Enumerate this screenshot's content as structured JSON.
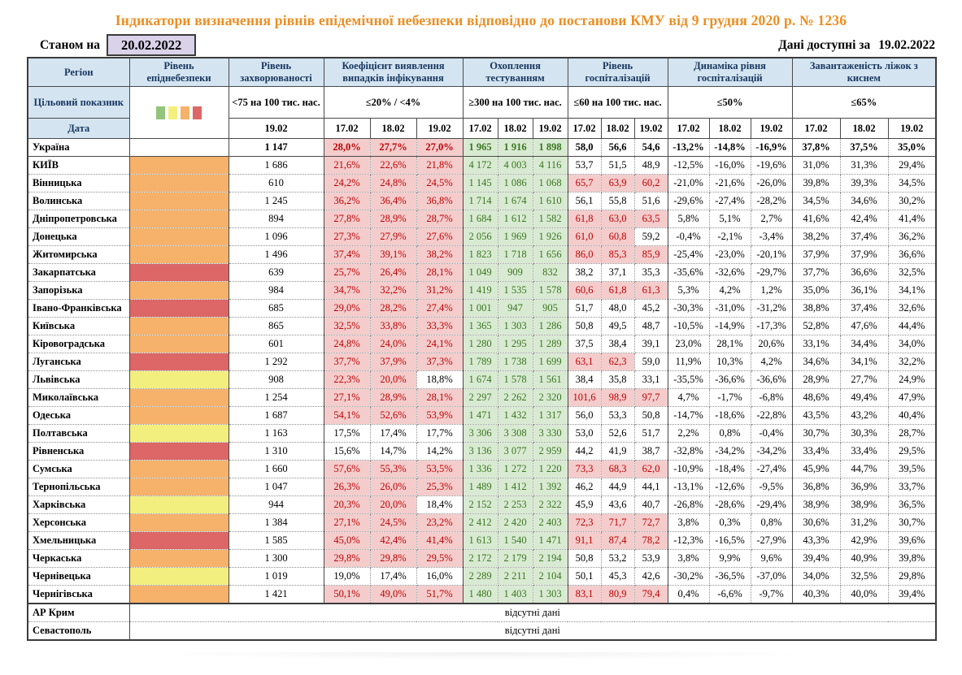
{
  "title": "Індикатори визначення рівнів епідемічної небезпеки відповідно до постанови КМУ від 9 грудня 2020 р. № 1236",
  "meta": {
    "as_of_label": "Станом на",
    "as_of_date": "20.02.2022",
    "available_label": "Дані доступні за",
    "available_date": "19.02.2022"
  },
  "table": {
    "header": {
      "region_label": "Регіон",
      "target_label": "Цільовий показник",
      "date_label": "Дата",
      "legend_colors": [
        "#93C47D",
        "#F3F07E",
        "#F6B26B",
        "#DD6666"
      ],
      "groups": [
        {
          "name": "Рівень епіднебезпеки",
          "target": "",
          "dates": []
        },
        {
          "name": "Рівень захворюваності",
          "target": "<75 на 100 тис. нас.",
          "dates": [
            "19.02"
          ]
        },
        {
          "name": "Коефіцієнт виявлення випадків інфікування",
          "target": "≤20% / <4%",
          "dates": [
            "17.02",
            "18.02",
            "19.02"
          ]
        },
        {
          "name": "Охоплення тестуванням",
          "target": "≥300 на 100 тис. нас.",
          "dates": [
            "17.02",
            "18.02",
            "19.02"
          ]
        },
        {
          "name": "Рівень госпіталізацій",
          "target": "≤60 на 100 тис. нас.",
          "dates": [
            "17.02",
            "18.02",
            "19.02"
          ]
        },
        {
          "name": "Динаміка рівня госпіталізацій",
          "target": "≤50%",
          "dates": [
            "17.02",
            "18.02",
            "19.02"
          ]
        },
        {
          "name": "Завантаженість ліжок з киснем",
          "target": "≤65%",
          "dates": [
            "17.02",
            "18.02",
            "19.02"
          ]
        }
      ]
    },
    "level_colors": {
      "orange": "#F6B26B",
      "red": "#DD6666",
      "yellow": "#F3EF7E"
    },
    "rows": [
      {
        "region": "Україна",
        "bold": true,
        "level": "",
        "inc": "1 147",
        "det": [
          "28,0%",
          "27,7%",
          "27,0%"
        ],
        "detA": [
          1,
          1,
          1
        ],
        "test": [
          "1 965",
          "1 916",
          "1 898"
        ],
        "hosp": [
          "58,0",
          "56,6",
          "54,6"
        ],
        "hospA": [
          0,
          0,
          0
        ],
        "dyn": [
          "-13,2%",
          "-14,8%",
          "-16,9%"
        ],
        "beds": [
          "37,8%",
          "37,5%",
          "35,0%"
        ]
      },
      {
        "region": "КИЇВ",
        "level": "orange",
        "inc": "1 686",
        "det": [
          "21,6%",
          "22,6%",
          "21,8%"
        ],
        "detA": [
          1,
          1,
          1
        ],
        "test": [
          "4 172",
          "4 003",
          "4 116"
        ],
        "hosp": [
          "53,7",
          "51,5",
          "48,9"
        ],
        "hospA": [
          0,
          0,
          0
        ],
        "dyn": [
          "-12,5%",
          "-16,0%",
          "-19,6%"
        ],
        "beds": [
          "31,0%",
          "31,3%",
          "29,4%"
        ]
      },
      {
        "region": "Вінницька",
        "level": "orange",
        "inc": "610",
        "det": [
          "24,2%",
          "24,8%",
          "24,5%"
        ],
        "detA": [
          1,
          1,
          1
        ],
        "test": [
          "1 145",
          "1 086",
          "1 068"
        ],
        "hosp": [
          "65,7",
          "63,9",
          "60,2"
        ],
        "hospA": [
          1,
          1,
          1
        ],
        "dyn": [
          "-21,0%",
          "-21,6%",
          "-26,0%"
        ],
        "beds": [
          "39,8%",
          "39,3%",
          "34,5%"
        ]
      },
      {
        "region": "Волинська",
        "level": "orange",
        "inc": "1 245",
        "det": [
          "36,2%",
          "36,4%",
          "36,8%"
        ],
        "detA": [
          1,
          1,
          1
        ],
        "test": [
          "1 714",
          "1 674",
          "1 610"
        ],
        "hosp": [
          "56,1",
          "55,8",
          "51,6"
        ],
        "hospA": [
          0,
          0,
          0
        ],
        "dyn": [
          "-29,6%",
          "-27,4%",
          "-28,2%"
        ],
        "beds": [
          "34,5%",
          "34,6%",
          "30,2%"
        ]
      },
      {
        "region": "Дніпропетровська",
        "level": "orange",
        "inc": "894",
        "det": [
          "27,8%",
          "28,9%",
          "28,7%"
        ],
        "detA": [
          1,
          1,
          1
        ],
        "test": [
          "1 684",
          "1 612",
          "1 582"
        ],
        "hosp": [
          "61,8",
          "63,0",
          "63,5"
        ],
        "hospA": [
          1,
          1,
          1
        ],
        "dyn": [
          "5,8%",
          "5,1%",
          "2,7%"
        ],
        "beds": [
          "41,6%",
          "42,4%",
          "41,4%"
        ]
      },
      {
        "region": "Донецька",
        "level": "orange",
        "inc": "1 096",
        "det": [
          "27,3%",
          "27,9%",
          "27,6%"
        ],
        "detA": [
          1,
          1,
          1
        ],
        "test": [
          "2 056",
          "1 969",
          "1 926"
        ],
        "hosp": [
          "61,0",
          "60,8",
          "59,2"
        ],
        "hospA": [
          1,
          1,
          0
        ],
        "dyn": [
          "-0,4%",
          "-2,1%",
          "-3,4%"
        ],
        "beds": [
          "38,2%",
          "37,4%",
          "36,2%"
        ]
      },
      {
        "region": "Житомирська",
        "level": "orange",
        "inc": "1 496",
        "det": [
          "37,4%",
          "39,1%",
          "38,2%"
        ],
        "detA": [
          1,
          1,
          1
        ],
        "test": [
          "1 823",
          "1 718",
          "1 656"
        ],
        "hosp": [
          "86,0",
          "85,3",
          "85,9"
        ],
        "hospA": [
          1,
          1,
          1
        ],
        "dyn": [
          "-25,4%",
          "-23,0%",
          "-20,1%"
        ],
        "beds": [
          "37,9%",
          "37,9%",
          "36,6%"
        ]
      },
      {
        "region": "Закарпатська",
        "level": "red",
        "inc": "639",
        "det": [
          "25,7%",
          "26,4%",
          "28,1%"
        ],
        "detA": [
          1,
          1,
          1
        ],
        "test": [
          "1 049",
          "909",
          "832"
        ],
        "hosp": [
          "38,2",
          "37,1",
          "35,3"
        ],
        "hospA": [
          0,
          0,
          0
        ],
        "dyn": [
          "-35,6%",
          "-32,6%",
          "-29,7%"
        ],
        "beds": [
          "37,7%",
          "36,6%",
          "32,5%"
        ]
      },
      {
        "region": "Запорізька",
        "level": "orange",
        "inc": "984",
        "det": [
          "34,7%",
          "32,2%",
          "31,2%"
        ],
        "detA": [
          1,
          1,
          1
        ],
        "test": [
          "1 419",
          "1 535",
          "1 578"
        ],
        "hosp": [
          "60,6",
          "61,8",
          "61,3"
        ],
        "hospA": [
          1,
          1,
          1
        ],
        "dyn": [
          "5,3%",
          "4,2%",
          "1,2%"
        ],
        "beds": [
          "35,0%",
          "36,1%",
          "34,1%"
        ]
      },
      {
        "region": "Івано-Франківська",
        "level": "red",
        "inc": "685",
        "det": [
          "29,0%",
          "28,2%",
          "27,4%"
        ],
        "detA": [
          1,
          1,
          1
        ],
        "test": [
          "1 001",
          "947",
          "905"
        ],
        "hosp": [
          "51,7",
          "48,0",
          "45,2"
        ],
        "hospA": [
          0,
          0,
          0
        ],
        "dyn": [
          "-30,3%",
          "-31,0%",
          "-31,2%"
        ],
        "beds": [
          "38,8%",
          "37,4%",
          "32,6%"
        ]
      },
      {
        "region": "Київська",
        "level": "orange",
        "inc": "865",
        "det": [
          "32,5%",
          "33,8%",
          "33,3%"
        ],
        "detA": [
          1,
          1,
          1
        ],
        "test": [
          "1 365",
          "1 303",
          "1 286"
        ],
        "hosp": [
          "50,8",
          "49,5",
          "48,7"
        ],
        "hospA": [
          0,
          0,
          0
        ],
        "dyn": [
          "-10,5%",
          "-14,9%",
          "-17,3%"
        ],
        "beds": [
          "52,8%",
          "47,6%",
          "44,4%"
        ]
      },
      {
        "region": "Кіровоградська",
        "level": "orange",
        "inc": "601",
        "det": [
          "24,8%",
          "24,0%",
          "24,1%"
        ],
        "detA": [
          1,
          1,
          1
        ],
        "test": [
          "1 280",
          "1 295",
          "1 289"
        ],
        "hosp": [
          "37,5",
          "38,4",
          "39,1"
        ],
        "hospA": [
          0,
          0,
          0
        ],
        "dyn": [
          "23,0%",
          "28,1%",
          "20,6%"
        ],
        "beds": [
          "33,1%",
          "34,4%",
          "34,0%"
        ]
      },
      {
        "region": "Луганська",
        "level": "red",
        "inc": "1 292",
        "det": [
          "37,7%",
          "37,9%",
          "37,3%"
        ],
        "detA": [
          1,
          1,
          1
        ],
        "test": [
          "1 789",
          "1 738",
          "1 699"
        ],
        "hosp": [
          "63,1",
          "62,3",
          "59,0"
        ],
        "hospA": [
          1,
          1,
          0
        ],
        "dyn": [
          "11,9%",
          "10,3%",
          "4,2%"
        ],
        "beds": [
          "34,6%",
          "34,1%",
          "32,2%"
        ]
      },
      {
        "region": "Львівська",
        "level": "yellow",
        "inc": "908",
        "det": [
          "22,3%",
          "20,0%",
          "18,8%"
        ],
        "detA": [
          1,
          1,
          0
        ],
        "test": [
          "1 674",
          "1 578",
          "1 561"
        ],
        "hosp": [
          "38,4",
          "35,8",
          "33,1"
        ],
        "hospA": [
          0,
          0,
          0
        ],
        "dyn": [
          "-35,5%",
          "-36,6%",
          "-36,6%"
        ],
        "beds": [
          "28,9%",
          "27,7%",
          "24,9%"
        ]
      },
      {
        "region": "Миколаївська",
        "level": "orange",
        "inc": "1 254",
        "det": [
          "27,1%",
          "28,9%",
          "28,1%"
        ],
        "detA": [
          1,
          1,
          1
        ],
        "test": [
          "2 297",
          "2 262",
          "2 320"
        ],
        "hosp": [
          "101,6",
          "98,9",
          "97,7"
        ],
        "hospA": [
          1,
          1,
          1
        ],
        "dyn": [
          "4,7%",
          "-1,7%",
          "-6,8%"
        ],
        "beds": [
          "48,6%",
          "49,4%",
          "47,9%"
        ]
      },
      {
        "region": "Одеська",
        "level": "orange",
        "inc": "1 687",
        "det": [
          "54,1%",
          "52,6%",
          "53,9%"
        ],
        "detA": [
          1,
          1,
          1
        ],
        "test": [
          "1 471",
          "1 432",
          "1 317"
        ],
        "hosp": [
          "56,0",
          "53,3",
          "50,8"
        ],
        "hospA": [
          0,
          0,
          0
        ],
        "dyn": [
          "-14,7%",
          "-18,6%",
          "-22,8%"
        ],
        "beds": [
          "43,5%",
          "43,2%",
          "40,4%"
        ]
      },
      {
        "region": "Полтавська",
        "level": "yellow",
        "inc": "1 163",
        "det": [
          "17,5%",
          "17,4%",
          "17,7%"
        ],
        "detA": [
          0,
          0,
          0
        ],
        "test": [
          "3 306",
          "3 308",
          "3 330"
        ],
        "hosp": [
          "53,0",
          "52,6",
          "51,7"
        ],
        "hospA": [
          0,
          0,
          0
        ],
        "dyn": [
          "2,2%",
          "0,8%",
          "-0,4%"
        ],
        "beds": [
          "30,7%",
          "30,3%",
          "28,7%"
        ]
      },
      {
        "region": "Рівненська",
        "level": "red",
        "inc": "1 310",
        "det": [
          "15,6%",
          "14,7%",
          "14,2%"
        ],
        "detA": [
          0,
          0,
          0
        ],
        "test": [
          "3 136",
          "3 077",
          "2 959"
        ],
        "hosp": [
          "44,2",
          "41,9",
          "38,7"
        ],
        "hospA": [
          0,
          0,
          0
        ],
        "dyn": [
          "-32,8%",
          "-34,2%",
          "-34,2%"
        ],
        "beds": [
          "33,4%",
          "33,4%",
          "29,5%"
        ]
      },
      {
        "region": "Сумська",
        "level": "orange",
        "inc": "1 660",
        "det": [
          "57,6%",
          "55,3%",
          "53,5%"
        ],
        "detA": [
          1,
          1,
          1
        ],
        "test": [
          "1 336",
          "1 272",
          "1 220"
        ],
        "hosp": [
          "73,3",
          "68,3",
          "62,0"
        ],
        "hospA": [
          1,
          1,
          1
        ],
        "dyn": [
          "-10,9%",
          "-18,4%",
          "-27,4%"
        ],
        "beds": [
          "45,9%",
          "44,7%",
          "39,5%"
        ]
      },
      {
        "region": "Тернопільська",
        "level": "orange",
        "inc": "1 047",
        "det": [
          "26,3%",
          "26,0%",
          "25,3%"
        ],
        "detA": [
          1,
          1,
          1
        ],
        "test": [
          "1 489",
          "1 412",
          "1 392"
        ],
        "hosp": [
          "46,2",
          "44,9",
          "44,1"
        ],
        "hospA": [
          0,
          0,
          0
        ],
        "dyn": [
          "-13,1%",
          "-12,6%",
          "-9,5%"
        ],
        "beds": [
          "36,8%",
          "36,9%",
          "33,7%"
        ]
      },
      {
        "region": "Харківська",
        "level": "yellow",
        "inc": "944",
        "det": [
          "20,3%",
          "20,0%",
          "18,4%"
        ],
        "detA": [
          1,
          1,
          0
        ],
        "test": [
          "2 152",
          "2 253",
          "2 322"
        ],
        "hosp": [
          "45,9",
          "43,6",
          "40,7"
        ],
        "hospA": [
          0,
          0,
          0
        ],
        "dyn": [
          "-26,8%",
          "-28,6%",
          "-29,4%"
        ],
        "beds": [
          "38,9%",
          "38,9%",
          "36,5%"
        ]
      },
      {
        "region": "Херсонська",
        "level": "orange",
        "inc": "1 384",
        "det": [
          "27,1%",
          "24,5%",
          "23,2%"
        ],
        "detA": [
          1,
          1,
          1
        ],
        "test": [
          "2 412",
          "2 420",
          "2 403"
        ],
        "hosp": [
          "72,3",
          "71,7",
          "72,7"
        ],
        "hospA": [
          1,
          1,
          1
        ],
        "dyn": [
          "3,8%",
          "0,3%",
          "0,8%"
        ],
        "beds": [
          "30,6%",
          "31,2%",
          "30,7%"
        ]
      },
      {
        "region": "Хмельницька",
        "level": "red",
        "inc": "1 585",
        "det": [
          "45,0%",
          "42,4%",
          "41,4%"
        ],
        "detA": [
          1,
          1,
          1
        ],
        "test": [
          "1 613",
          "1 540",
          "1 471"
        ],
        "hosp": [
          "91,1",
          "87,4",
          "78,2"
        ],
        "hospA": [
          1,
          1,
          1
        ],
        "dyn": [
          "-12,3%",
          "-16,5%",
          "-27,9%"
        ],
        "beds": [
          "43,3%",
          "42,9%",
          "39,6%"
        ]
      },
      {
        "region": "Черкаська",
        "level": "orange",
        "inc": "1 300",
        "det": [
          "29,8%",
          "29,8%",
          "29,5%"
        ],
        "detA": [
          1,
          1,
          1
        ],
        "test": [
          "2 172",
          "2 179",
          "2 194"
        ],
        "hosp": [
          "50,8",
          "53,2",
          "53,9"
        ],
        "hospA": [
          0,
          0,
          0
        ],
        "dyn": [
          "3,8%",
          "9,9%",
          "9,6%"
        ],
        "beds": [
          "39,4%",
          "40,9%",
          "39,8%"
        ]
      },
      {
        "region": "Чернівецька",
        "level": "yellow",
        "inc": "1 019",
        "det": [
          "19,0%",
          "17,4%",
          "16,0%"
        ],
        "detA": [
          0,
          0,
          0
        ],
        "test": [
          "2 289",
          "2 211",
          "2 104"
        ],
        "hosp": [
          "50,1",
          "45,3",
          "42,6"
        ],
        "hospA": [
          0,
          0,
          0
        ],
        "dyn": [
          "-30,2%",
          "-36,5%",
          "-37,0%"
        ],
        "beds": [
          "34,0%",
          "32,5%",
          "29,8%"
        ]
      },
      {
        "region": "Чернігівська",
        "level": "orange",
        "inc": "1 421",
        "det": [
          "50,1%",
          "49,0%",
          "51,7%"
        ],
        "detA": [
          1,
          1,
          1
        ],
        "test": [
          "1 480",
          "1 403",
          "1 303"
        ],
        "hosp": [
          "83,1",
          "80,9",
          "79,4"
        ],
        "hospA": [
          1,
          1,
          1
        ],
        "dyn": [
          "0,4%",
          "-6,6%",
          "-9,7%"
        ],
        "beds": [
          "40,3%",
          "40,0%",
          "39,4%"
        ]
      }
    ],
    "nodata": [
      {
        "region": "АР Крим",
        "text": "відсутні дані"
      },
      {
        "region": "Севастополь",
        "text": "відсутні дані"
      }
    ]
  }
}
